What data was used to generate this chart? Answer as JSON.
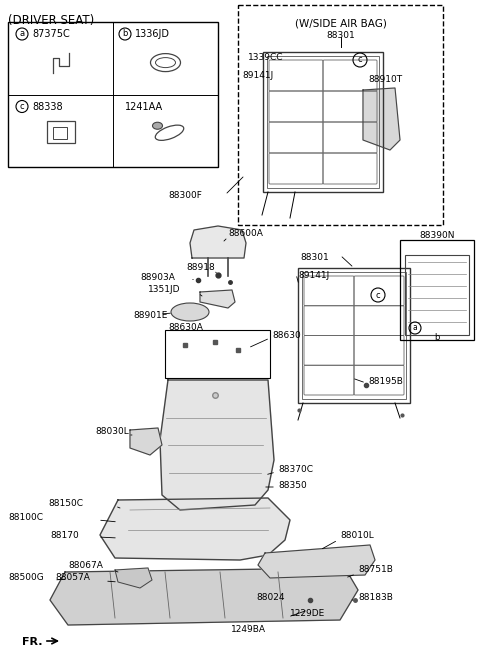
{
  "bg_color": "#ffffff",
  "title": "(DRIVER SEAT)",
  "airbag_title": "(W/SIDE AIR BAG)",
  "fr_label": "FR.",
  "label_fs": 6.5,
  "small_fs": 6.0
}
